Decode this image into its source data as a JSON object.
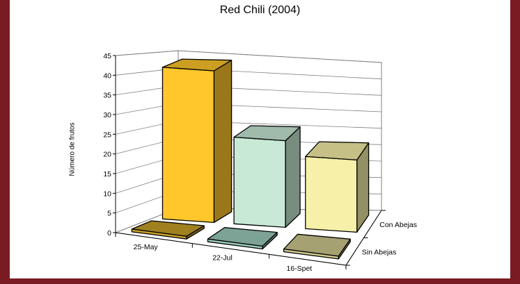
{
  "chart_data": {
    "type": "bar",
    "title": "Red Chili (2004)",
    "ylabel": "Número de frutos",
    "xlabel": "",
    "categories": [
      "25-May",
      "22-Jul",
      "16-Spet"
    ],
    "series": [
      {
        "name": "Sin Abejas",
        "values": [
          0,
          0,
          0
        ],
        "colors": [
          "#c8a128",
          "#9ccbbb",
          "#cfc98e"
        ]
      },
      {
        "name": "Con Abejas",
        "values": [
          42,
          24,
          20
        ],
        "colors": [
          "#ffc72b",
          "#c8e9d6",
          "#f7f0a8"
        ]
      }
    ],
    "y_ticks": [
      "0",
      "5",
      "10",
      "15",
      "20",
      "25",
      "30",
      "35",
      "40",
      "45"
    ],
    "ylim": [
      0,
      45
    ],
    "grid": true,
    "chart_style": "3d-column"
  }
}
